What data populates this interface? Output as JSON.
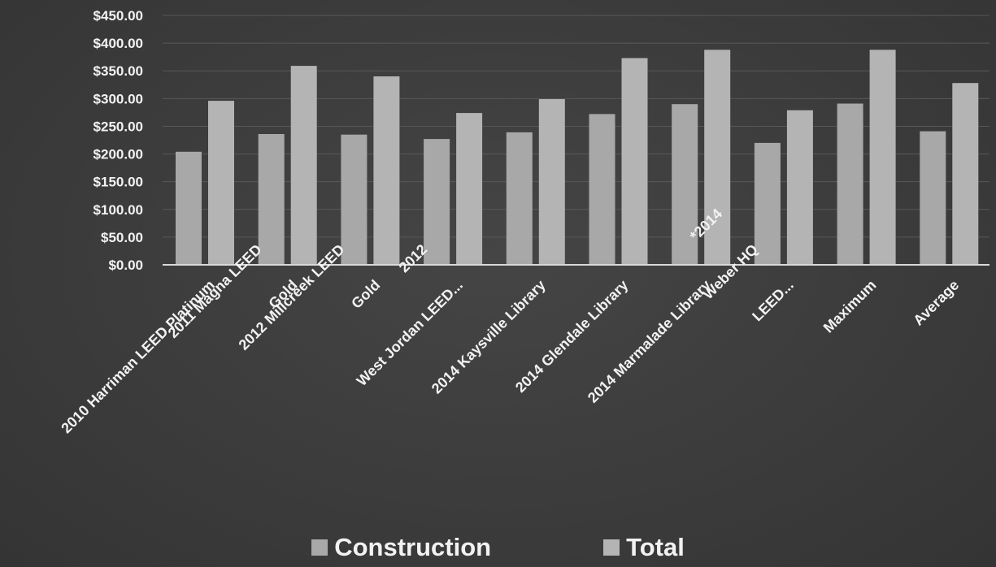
{
  "chart_data": {
    "type": "bar",
    "title": "",
    "xlabel": "",
    "ylabel": "",
    "ylim": [
      0,
      450
    ],
    "y_ticks": [
      "$0.00",
      "$50.00",
      "$100.00",
      "$150.00",
      "$200.00",
      "$250.00",
      "$300.00",
      "$350.00",
      "$400.00",
      "$450.00"
    ],
    "y_tick_values": [
      0,
      50,
      100,
      150,
      200,
      250,
      300,
      350,
      400,
      450
    ],
    "grid": true,
    "legend_position": "bottom",
    "categories": [
      [
        "2010 Harriman LEED Platinum"
      ],
      [
        "2011  Magna     LEED",
        "Gold"
      ],
      [
        "2012 Millcreek   LEED",
        "Gold"
      ],
      [
        "2012",
        "West Jordan   LEED..."
      ],
      [
        "2014  Kaysville Library"
      ],
      [
        "2014 Glendale Library"
      ],
      [
        "2014 Marmalade  Library"
      ],
      [
        "*2014",
        "Weber HQ",
        "LEED..."
      ],
      [
        "Maximum"
      ],
      [
        "Average"
      ]
    ],
    "series": [
      {
        "name": "Construction",
        "color": "#a8a8a8",
        "values": [
          204,
          236,
          235,
          227,
          239,
          272,
          290,
          220,
          291,
          241
        ]
      },
      {
        "name": "Total",
        "color": "#b4b4b4",
        "values": [
          296,
          359,
          340,
          274,
          299,
          373,
          388,
          279,
          388,
          328
        ]
      }
    ]
  }
}
